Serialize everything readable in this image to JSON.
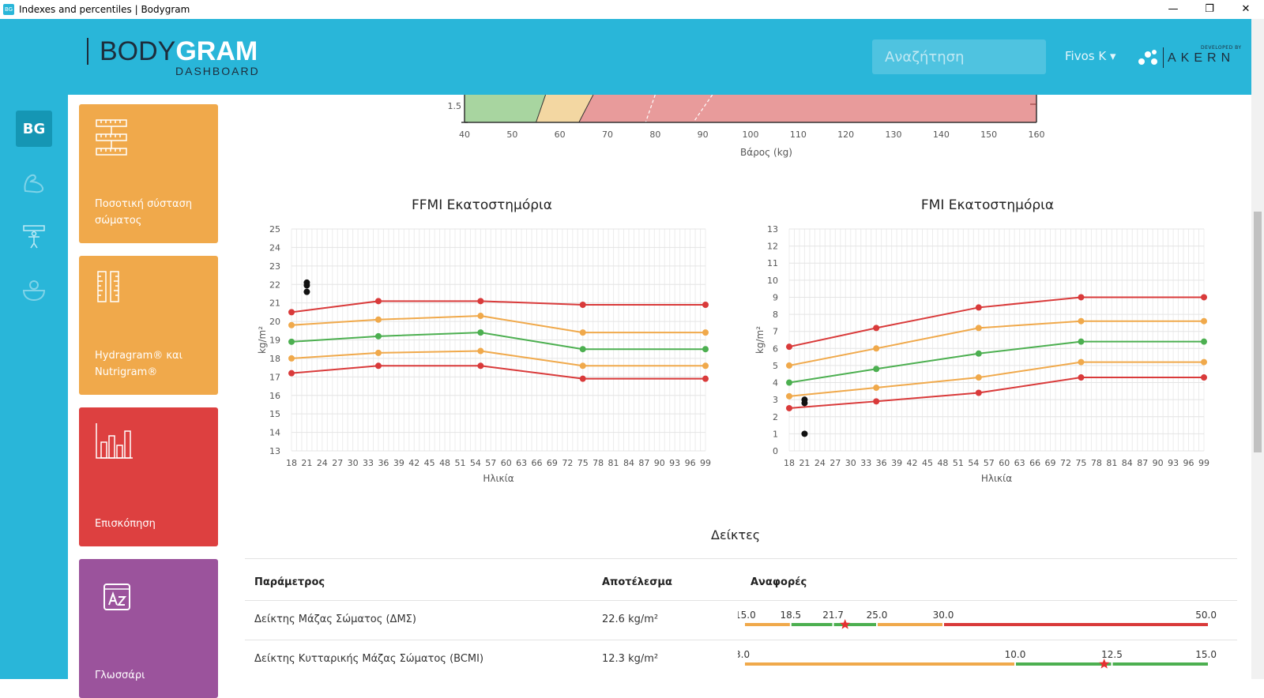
{
  "window": {
    "title": "Indexes and percentiles | Bodygram",
    "icon": "BG"
  },
  "header": {
    "logo_thin": "BODY",
    "logo_bold": "GRAM",
    "logo_sub": "DASHBOARD",
    "search_placeholder": "Αναζήτηση",
    "user": "Fivos K",
    "brand_dev": "DEVELOPED BY",
    "brand": "AKERN"
  },
  "rail": {
    "logo": "BG"
  },
  "tiles": [
    {
      "label": "Ποσοτική σύσταση σώματος",
      "color": "#f0a94b",
      "icon": "ruler-stack-icon"
    },
    {
      "label": "Hydragram® και Nutrigram®",
      "color": "#f0a94b",
      "icon": "vertical-ruler-icon"
    },
    {
      "label": "Επισκόπηση",
      "color": "#dd4040",
      "icon": "bar-chart-icon"
    },
    {
      "label": "Γλωσσάρι",
      "color": "#9b539c",
      "icon": "dictionary-icon"
    }
  ],
  "top_chart": {
    "y_tick": "1.5",
    "x_ticks": [
      "40",
      "50",
      "60",
      "70",
      "80",
      "90",
      "100",
      "110",
      "120",
      "130",
      "140",
      "150",
      "160"
    ],
    "xlabel": "Βάρος (kg)"
  },
  "ffmi_chart": {
    "title": "FFMI Εκατοστημόρια",
    "ylabel": "kg/m²",
    "xlabel": "Ηλικία",
    "y_ticks": [
      "13",
      "14",
      "15",
      "16",
      "17",
      "18",
      "19",
      "20",
      "21",
      "22",
      "23",
      "24",
      "25"
    ],
    "x_ticks": [
      "18",
      "21",
      "24",
      "27",
      "30",
      "33",
      "36",
      "39",
      "42",
      "45",
      "48",
      "51",
      "54",
      "57",
      "60",
      "63",
      "66",
      "69",
      "72",
      "75",
      "78",
      "81",
      "84",
      "87",
      "90",
      "93",
      "96",
      "99"
    ]
  },
  "fmi_chart": {
    "title": "FMI Εκατοστημόρια",
    "ylabel": "kg/m²",
    "xlabel": "Ηλικία",
    "y_ticks": [
      "0",
      "1",
      "2",
      "3",
      "4",
      "5",
      "6",
      "7",
      "8",
      "9",
      "10",
      "11",
      "12",
      "13"
    ],
    "x_ticks": [
      "18",
      "21",
      "24",
      "27",
      "30",
      "33",
      "36",
      "39",
      "42",
      "45",
      "48",
      "51",
      "54",
      "57",
      "60",
      "63",
      "66",
      "69",
      "72",
      "75",
      "78",
      "81",
      "84",
      "87",
      "90",
      "93",
      "96",
      "99"
    ]
  },
  "chart_data": [
    {
      "type": "line",
      "title": "FFMI Εκατοστημόρια",
      "xlabel": "Ηλικία",
      "ylabel": "kg/m²",
      "x": [
        18,
        35,
        55,
        75,
        99
      ],
      "ylim": [
        13,
        25
      ],
      "series": [
        {
          "color": "#d93a3a",
          "values": [
            20.5,
            21.1,
            21.1,
            20.9,
            20.9
          ]
        },
        {
          "color": "#f0a94b",
          "values": [
            19.8,
            20.1,
            20.3,
            19.4,
            19.4
          ]
        },
        {
          "color": "#4caf50",
          "values": [
            18.9,
            19.2,
            19.4,
            18.5,
            18.5
          ]
        },
        {
          "color": "#f0a94b",
          "values": [
            18.0,
            18.3,
            18.4,
            17.6,
            17.6
          ]
        },
        {
          "color": "#d93a3a",
          "values": [
            17.2,
            17.6,
            17.6,
            16.9,
            16.9
          ]
        }
      ],
      "points": [
        {
          "x": 21,
          "y": 22.1
        },
        {
          "x": 21,
          "y": 21.95
        },
        {
          "x": 21,
          "y": 21.6
        }
      ]
    },
    {
      "type": "line",
      "title": "FMI Εκατοστημόρια",
      "xlabel": "Ηλικία",
      "ylabel": "kg/m²",
      "x": [
        18,
        35,
        55,
        75,
        99
      ],
      "ylim": [
        0,
        13
      ],
      "series": [
        {
          "color": "#d93a3a",
          "values": [
            6.1,
            7.2,
            8.4,
            9.0,
            9.0
          ]
        },
        {
          "color": "#f0a94b",
          "values": [
            5.0,
            6.0,
            7.2,
            7.6,
            7.6
          ]
        },
        {
          "color": "#4caf50",
          "values": [
            4.0,
            4.8,
            5.7,
            6.4,
            6.4
          ]
        },
        {
          "color": "#f0a94b",
          "values": [
            3.2,
            3.7,
            4.3,
            5.2,
            5.2
          ]
        },
        {
          "color": "#d93a3a",
          "values": [
            2.5,
            2.9,
            3.4,
            4.3,
            4.3
          ]
        }
      ],
      "points": [
        {
          "x": 21,
          "y": 3.0
        },
        {
          "x": 21,
          "y": 2.8
        },
        {
          "x": 21,
          "y": 1.0
        }
      ]
    }
  ],
  "indices": {
    "title": "Δείκτες",
    "headers": [
      "Παράμετρος",
      "Αποτέλεσμα",
      "Αναφορές"
    ],
    "rows": [
      {
        "param": "Δείκτης Μάζας Σώματος (ΔΜΣ)",
        "result": "22.6 kg/m²",
        "marks": [
          "15.0",
          "18.5",
          "21.7",
          "25.0",
          "30.0",
          "50.0"
        ],
        "bounds": [
          15.0,
          18.5,
          21.7,
          25.0,
          30.0,
          50.0
        ],
        "colors": [
          "#f0a94b",
          "#4caf50",
          "#4caf50",
          "#f0a94b",
          "#d93a3a"
        ],
        "value": 22.6
      },
      {
        "param": "Δείκτης Κυτταρικής Μάζας Σώματος (BCMI)",
        "result": "12.3 kg/m²",
        "marks": [
          "3.0",
          "10.0",
          "12.5",
          "15.0"
        ],
        "bounds": [
          3.0,
          10.0,
          12.5,
          15.0
        ],
        "colors": [
          "#f0a94b",
          "#4caf50",
          "#4caf50"
        ],
        "value": 12.3
      }
    ]
  }
}
